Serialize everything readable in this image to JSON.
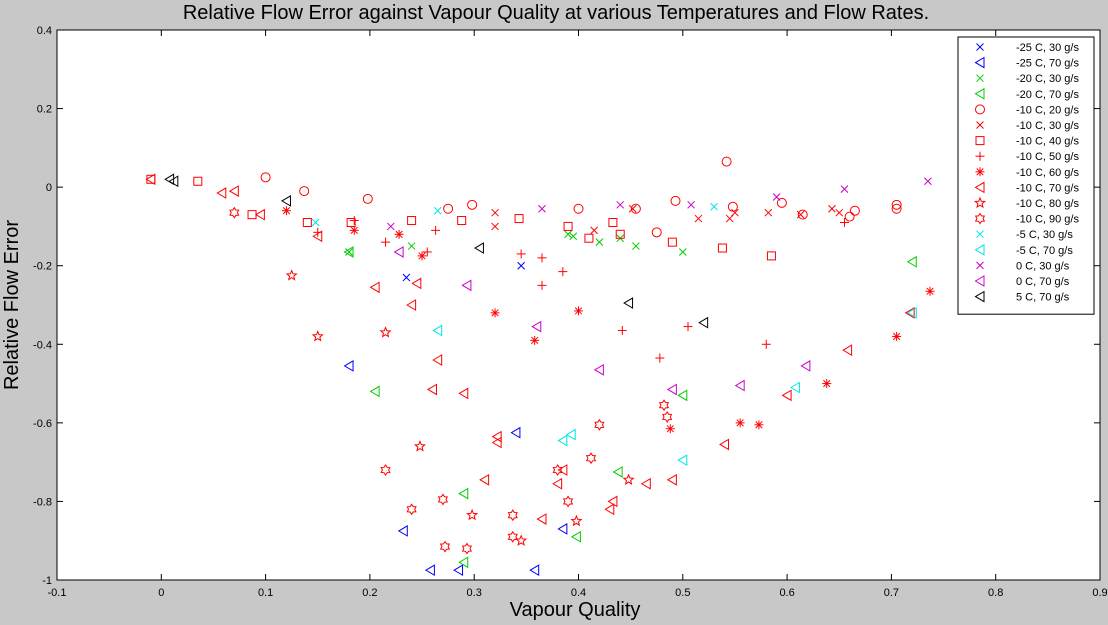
{
  "chart_data": {
    "type": "scatter",
    "title": "Relative Flow Error against Vapour Quality at various Temperatures and Flow Rates.",
    "xlabel": "Vapour Quality",
    "ylabel": "Relative Flow Error",
    "xlim": [
      -0.1,
      0.9
    ],
    "ylim": [
      -1,
      0.4
    ],
    "xticks": [
      "-0.1",
      "0",
      "0.1",
      "0.2",
      "0.3",
      "0.4",
      "0.5",
      "0.6",
      "0.7",
      "0.8",
      "0.9"
    ],
    "yticks": [
      "-1",
      "-0.8",
      "-0.6",
      "-0.4",
      "-0.2",
      "0",
      "0.2",
      "0.4"
    ],
    "grid": false,
    "legend_position": "top-right",
    "series": [
      {
        "name": "-25 C, 30 g/s",
        "marker": "x",
        "color": "#0000ff",
        "points": [
          [
            0.235,
            -0.23
          ],
          [
            0.345,
            -0.2
          ]
        ]
      },
      {
        "name": "-25 C, 70 g/s",
        "marker": "tri-left",
        "color": "#0000ff",
        "points": [
          [
            0.18,
            -0.455
          ],
          [
            0.232,
            -0.875
          ],
          [
            0.258,
            -0.975
          ],
          [
            0.285,
            -0.975
          ],
          [
            0.34,
            -0.625
          ],
          [
            0.358,
            -0.975
          ],
          [
            0.385,
            -0.87
          ]
        ]
      },
      {
        "name": "-20 C, 30 g/s",
        "marker": "x",
        "color": "#00cc00",
        "points": [
          [
            0.18,
            -0.165
          ],
          [
            0.24,
            -0.15
          ],
          [
            0.39,
            -0.12
          ],
          [
            0.395,
            -0.125
          ],
          [
            0.42,
            -0.14
          ],
          [
            0.44,
            -0.13
          ],
          [
            0.455,
            -0.15
          ],
          [
            0.5,
            -0.165
          ]
        ]
      },
      {
        "name": "-20 C, 70 g/s",
        "marker": "tri-left",
        "color": "#00cc00",
        "points": [
          [
            0.18,
            -0.165
          ],
          [
            0.205,
            -0.52
          ],
          [
            0.29,
            -0.78
          ],
          [
            0.29,
            -0.955
          ],
          [
            0.398,
            -0.89
          ],
          [
            0.438,
            -0.725
          ],
          [
            0.5,
            -0.53
          ],
          [
            0.72,
            -0.19
          ]
        ]
      },
      {
        "name": "-10 C, 20 g/s",
        "marker": "circle",
        "color": "#ff0000",
        "points": [
          [
            0.1,
            0.025
          ],
          [
            0.137,
            -0.01
          ],
          [
            0.198,
            -0.03
          ],
          [
            0.275,
            -0.055
          ],
          [
            0.298,
            -0.045
          ],
          [
            0.4,
            -0.055
          ],
          [
            0.455,
            -0.055
          ],
          [
            0.475,
            -0.115
          ],
          [
            0.493,
            -0.035
          ],
          [
            0.542,
            0.065
          ],
          [
            0.548,
            -0.05
          ],
          [
            0.595,
            -0.04
          ],
          [
            0.615,
            -0.07
          ],
          [
            0.66,
            -0.075
          ],
          [
            0.665,
            -0.06
          ],
          [
            0.705,
            -0.045
          ],
          [
            0.705,
            -0.055
          ]
        ]
      },
      {
        "name": "-10 C, 30 g/s",
        "marker": "x",
        "color": "#ff0000",
        "points": [
          [
            0.32,
            -0.065
          ],
          [
            0.32,
            -0.1
          ],
          [
            0.415,
            -0.11
          ],
          [
            0.452,
            -0.055
          ],
          [
            0.515,
            -0.08
          ],
          [
            0.545,
            -0.08
          ],
          [
            0.55,
            -0.065
          ],
          [
            0.582,
            -0.065
          ],
          [
            0.613,
            -0.07
          ],
          [
            0.643,
            -0.055
          ],
          [
            0.65,
            -0.065
          ]
        ]
      },
      {
        "name": "-10 C, 40 g/s",
        "marker": "square",
        "color": "#ff0000",
        "points": [
          [
            -0.01,
            0.02
          ],
          [
            0.035,
            0.015
          ],
          [
            0.087,
            -0.07
          ],
          [
            0.14,
            -0.09
          ],
          [
            0.182,
            -0.09
          ],
          [
            0.24,
            -0.085
          ],
          [
            0.288,
            -0.085
          ],
          [
            0.343,
            -0.08
          ],
          [
            0.39,
            -0.1
          ],
          [
            0.41,
            -0.13
          ],
          [
            0.433,
            -0.09
          ],
          [
            0.44,
            -0.12
          ],
          [
            0.49,
            -0.14
          ],
          [
            0.538,
            -0.155
          ],
          [
            0.585,
            -0.175
          ]
        ]
      },
      {
        "name": "-10 C, 50 g/s",
        "marker": "plus",
        "color": "#ff0000",
        "points": [
          [
            0.15,
            -0.115
          ],
          [
            0.185,
            -0.085
          ],
          [
            0.215,
            -0.14
          ],
          [
            0.255,
            -0.165
          ],
          [
            0.263,
            -0.11
          ],
          [
            0.345,
            -0.17
          ],
          [
            0.365,
            -0.25
          ],
          [
            0.365,
            -0.18
          ],
          [
            0.385,
            -0.215
          ],
          [
            0.442,
            -0.365
          ],
          [
            0.478,
            -0.435
          ],
          [
            0.505,
            -0.355
          ],
          [
            0.58,
            -0.4
          ],
          [
            0.655,
            -0.09
          ]
        ]
      },
      {
        "name": "-10 C, 60 g/s",
        "marker": "asterisk",
        "color": "#ff0000",
        "points": [
          [
            0.12,
            -0.06
          ],
          [
            0.185,
            -0.11
          ],
          [
            0.228,
            -0.12
          ],
          [
            0.25,
            -0.175
          ],
          [
            0.32,
            -0.32
          ],
          [
            0.358,
            -0.39
          ],
          [
            0.4,
            -0.315
          ],
          [
            0.488,
            -0.615
          ],
          [
            0.555,
            -0.6
          ],
          [
            0.573,
            -0.605
          ],
          [
            0.638,
            -0.5
          ],
          [
            0.705,
            -0.38
          ],
          [
            0.737,
            -0.265
          ]
        ]
      },
      {
        "name": "-10 C, 70 g/s",
        "marker": "tri-left",
        "color": "#ff0000",
        "points": [
          [
            -0.01,
            0.02
          ],
          [
            0.058,
            -0.015
          ],
          [
            0.07,
            -0.01
          ],
          [
            0.095,
            -0.07
          ],
          [
            0.15,
            -0.125
          ],
          [
            0.205,
            -0.255
          ],
          [
            0.245,
            -0.245
          ],
          [
            0.24,
            -0.3
          ],
          [
            0.26,
            -0.515
          ],
          [
            0.265,
            -0.44
          ],
          [
            0.29,
            -0.525
          ],
          [
            0.31,
            -0.745
          ],
          [
            0.322,
            -0.635
          ],
          [
            0.322,
            -0.65
          ],
          [
            0.365,
            -0.845
          ],
          [
            0.38,
            -0.755
          ],
          [
            0.385,
            -0.72
          ],
          [
            0.433,
            -0.8
          ],
          [
            0.43,
            -0.82
          ],
          [
            0.465,
            -0.755
          ],
          [
            0.49,
            -0.745
          ],
          [
            0.54,
            -0.655
          ],
          [
            0.6,
            -0.53
          ],
          [
            0.658,
            -0.415
          ],
          [
            0.718,
            -0.32
          ]
        ]
      },
      {
        "name": "-10 C, 80 g/s",
        "marker": "star",
        "color": "#ff0000",
        "points": [
          [
            0.125,
            -0.225
          ],
          [
            0.15,
            -0.38
          ],
          [
            0.215,
            -0.37
          ],
          [
            0.248,
            -0.66
          ],
          [
            0.298,
            -0.835
          ],
          [
            0.345,
            -0.9
          ],
          [
            0.398,
            -0.85
          ],
          [
            0.448,
            -0.745
          ]
        ]
      },
      {
        "name": "-10 C, 90 g/s",
        "marker": "hexagram",
        "color": "#ff0000",
        "points": [
          [
            0.07,
            -0.065
          ],
          [
            0.215,
            -0.72
          ],
          [
            0.24,
            -0.82
          ],
          [
            0.27,
            -0.795
          ],
          [
            0.272,
            -0.915
          ],
          [
            0.293,
            -0.92
          ],
          [
            0.337,
            -0.835
          ],
          [
            0.337,
            -0.89
          ],
          [
            0.38,
            -0.72
          ],
          [
            0.39,
            -0.8
          ],
          [
            0.412,
            -0.69
          ],
          [
            0.42,
            -0.605
          ],
          [
            0.482,
            -0.555
          ],
          [
            0.485,
            -0.585
          ]
        ]
      },
      {
        "name": "-5 C, 30 g/s",
        "marker": "x",
        "color": "#00e5e5",
        "points": [
          [
            0.148,
            -0.09
          ],
          [
            0.265,
            -0.06
          ],
          [
            0.53,
            -0.05
          ]
        ]
      },
      {
        "name": "-5 C, 70 g/s",
        "marker": "tri-left",
        "color": "#00e5e5",
        "points": [
          [
            0.265,
            -0.365
          ],
          [
            0.385,
            -0.645
          ],
          [
            0.393,
            -0.63
          ],
          [
            0.5,
            -0.695
          ],
          [
            0.608,
            -0.51
          ],
          [
            0.72,
            -0.32
          ]
        ]
      },
      {
        "name": "0 C, 30 g/s",
        "marker": "x",
        "color": "#cc00cc",
        "points": [
          [
            0.22,
            -0.1
          ],
          [
            0.365,
            -0.055
          ],
          [
            0.44,
            -0.045
          ],
          [
            0.508,
            -0.045
          ],
          [
            0.59,
            -0.025
          ],
          [
            0.655,
            -0.005
          ],
          [
            0.735,
            0.015
          ]
        ]
      },
      {
        "name": "0 C, 70 g/s",
        "marker": "tri-left",
        "color": "#cc00cc",
        "points": [
          [
            0.228,
            -0.165
          ],
          [
            0.293,
            -0.25
          ],
          [
            0.36,
            -0.355
          ],
          [
            0.42,
            -0.465
          ],
          [
            0.49,
            -0.515
          ],
          [
            0.555,
            -0.505
          ],
          [
            0.618,
            -0.455
          ]
        ]
      },
      {
        "name": "5 C, 70 g/s",
        "marker": "tri-left",
        "color": "#000000",
        "points": [
          [
            0.008,
            0.02
          ],
          [
            0.012,
            0.015
          ],
          [
            0.12,
            -0.035
          ],
          [
            0.305,
            -0.155
          ],
          [
            0.448,
            -0.295
          ],
          [
            0.52,
            -0.345
          ]
        ]
      }
    ]
  }
}
